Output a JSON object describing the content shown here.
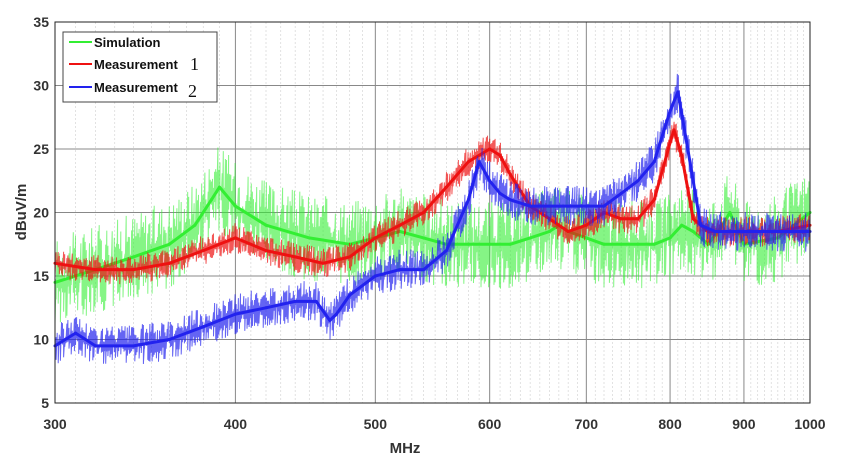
{
  "chart_data": {
    "type": "line",
    "title": "",
    "xlabel": "MHz",
    "ylabel": "dBuV/m",
    "x_scale": "log",
    "xlim": [
      300,
      1000
    ],
    "ylim": [
      5,
      35
    ],
    "grid": true,
    "legend_position": "top-left",
    "x_ticks": [
      300,
      400,
      500,
      600,
      700,
      800,
      900,
      1000
    ],
    "y_ticks": [
      5,
      10,
      15,
      20,
      25,
      30,
      35
    ],
    "series": [
      {
        "name": "Simulation",
        "color": "#33ee33",
        "x": [
          300,
          320,
          340,
          360,
          375,
          385,
          390,
          400,
          420,
          450,
          480,
          500,
          520,
          540,
          560,
          580,
          600,
          620,
          640,
          660,
          670,
          680,
          700,
          720,
          740,
          760,
          780,
          800,
          815,
          830,
          850,
          870,
          880,
          900,
          950,
          1000
        ],
        "y": [
          14.5,
          15.5,
          16.5,
          17.5,
          19,
          21,
          22,
          20.5,
          19,
          18,
          17.5,
          18,
          18.5,
          18,
          17.5,
          17.5,
          17.5,
          17.5,
          18,
          18.5,
          19,
          18.5,
          18,
          17.5,
          17.5,
          17.5,
          17.5,
          18,
          19,
          18.5,
          17.5,
          19,
          20,
          17.5,
          18,
          20
        ]
      },
      {
        "name": "Measurement",
        "label_suffix": "1",
        "color": "#ee1111",
        "x": [
          300,
          320,
          340,
          360,
          380,
          400,
          420,
          440,
          460,
          480,
          500,
          520,
          540,
          560,
          580,
          600,
          610,
          620,
          640,
          660,
          680,
          700,
          720,
          740,
          760,
          780,
          800,
          805,
          815,
          830,
          850,
          900,
          950,
          1000
        ],
        "y": [
          16,
          15.5,
          15.5,
          16,
          17,
          18,
          17,
          16.5,
          16,
          16.5,
          18,
          19,
          20,
          22,
          24,
          25,
          24.5,
          23,
          20.5,
          19.5,
          18.5,
          19,
          20,
          19.5,
          19.5,
          21,
          25.5,
          26.5,
          24.5,
          19.5,
          18.5,
          18.5,
          18.5,
          19
        ]
      },
      {
        "name": "Measurement",
        "label_suffix": "2",
        "color": "#2222ee",
        "x": [
          300,
          310,
          320,
          340,
          360,
          380,
          400,
          420,
          440,
          455,
          465,
          470,
          480,
          500,
          520,
          540,
          560,
          580,
          590,
          600,
          610,
          620,
          640,
          660,
          680,
          700,
          720,
          740,
          760,
          780,
          800,
          810,
          820,
          840,
          860,
          900,
          950,
          1000
        ],
        "y": [
          9.5,
          10.5,
          9.5,
          9.5,
          10,
          11,
          12,
          12.5,
          13,
          13,
          11.5,
          12,
          13.5,
          15,
          15.5,
          15.5,
          17,
          21,
          24,
          22.5,
          21.5,
          21,
          20.5,
          20.5,
          20.5,
          20.5,
          20.5,
          21.5,
          22.5,
          24,
          28,
          29.5,
          26,
          19,
          18.5,
          18.5,
          18.5,
          18.5
        ]
      }
    ]
  }
}
